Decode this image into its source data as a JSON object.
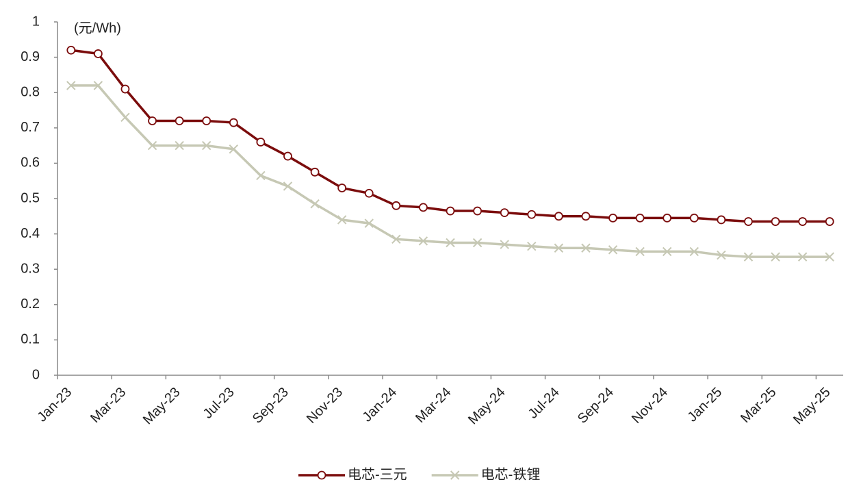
{
  "chart_data": {
    "type": "line",
    "y_label": "(元/Wh)",
    "categories": [
      "Jan-23",
      null,
      "Mar-23",
      null,
      "May-23",
      null,
      "Jul-23",
      null,
      "Sep-23",
      null,
      "Nov-23",
      null,
      "Jan-24",
      null,
      "Mar-24",
      null,
      "May-24",
      null,
      "Jul-24",
      null,
      "Sep-24",
      null,
      "Nov-24",
      null,
      "Jan-25",
      null,
      "Mar-25",
      null,
      "May-25"
    ],
    "series": [
      {
        "name": "电芯-三元",
        "color": "#7b0c0c",
        "marker": "circle",
        "values": [
          0.92,
          0.91,
          0.81,
          0.72,
          0.72,
          0.72,
          0.715,
          0.66,
          0.62,
          0.575,
          0.53,
          0.515,
          0.48,
          0.475,
          0.465,
          0.465,
          0.46,
          0.455,
          0.45,
          0.45,
          0.445,
          0.445,
          0.445,
          0.445,
          0.44,
          0.435,
          0.435,
          0.435,
          0.435
        ]
      },
      {
        "name": "电芯-铁锂",
        "color": "#c6c8b4",
        "marker": "x",
        "values": [
          0.82,
          0.82,
          0.73,
          0.65,
          0.65,
          0.65,
          0.64,
          0.565,
          0.535,
          0.485,
          0.44,
          0.43,
          0.385,
          0.38,
          0.375,
          0.375,
          0.37,
          0.365,
          0.36,
          0.36,
          0.355,
          0.35,
          0.35,
          0.35,
          0.34,
          0.335,
          0.335,
          0.335,
          0.335
        ]
      }
    ],
    "ylim": [
      0,
      1
    ],
    "yticks": [
      0,
      0.1,
      0.2,
      0.3,
      0.4,
      0.5,
      0.6,
      0.7,
      0.8,
      0.9,
      1
    ],
    "grid": false,
    "legend": "bottom"
  }
}
